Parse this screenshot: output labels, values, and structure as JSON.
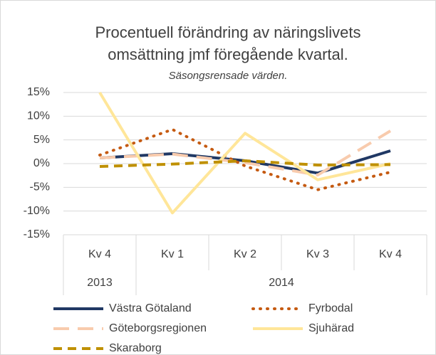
{
  "chart_data": {
    "type": "line",
    "title": [
      "Procentuell förändring av näringslivets",
      "omsättning jmf föregående kvartal."
    ],
    "subtitle": "Säsongsrensade värden.",
    "categories": [
      "Kv 4",
      "Kv 1",
      "Kv 2",
      "Kv 3",
      "Kv 4"
    ],
    "category_groups": [
      {
        "label": "2013",
        "span": 1
      },
      {
        "label": "2014",
        "span": 4
      }
    ],
    "ylim": [
      -15,
      15
    ],
    "yticks": [
      {
        "value": 15,
        "label": "15%"
      },
      {
        "value": 10,
        "label": "10%"
      },
      {
        "value": 5,
        "label": "5%"
      },
      {
        "value": 0,
        "label": "0%"
      },
      {
        "value": -5,
        "label": "-5%"
      },
      {
        "value": -10,
        "label": "-10%"
      },
      {
        "value": -15,
        "label": "-15%"
      }
    ],
    "grid": true,
    "legend": "bottom",
    "series": [
      {
        "name": "Västra Götaland",
        "color": "#203864",
        "style": "solid",
        "values": [
          1.2,
          2.1,
          0.6,
          -2.0,
          2.7
        ]
      },
      {
        "name": "Fyrbodal",
        "color": "#c55a11",
        "style": "dot",
        "values": [
          1.8,
          7.2,
          -0.5,
          -5.5,
          -1.8
        ]
      },
      {
        "name": "Göteborgsregionen",
        "color": "#f8cbad",
        "style": "long-dash",
        "values": [
          1.2,
          2.0,
          0.2,
          -2.4,
          6.9
        ]
      },
      {
        "name": "Sjuhärad",
        "color": "#ffe699",
        "style": "solid",
        "values": [
          15,
          -10.4,
          6.4,
          -3.4,
          0.0
        ]
      },
      {
        "name": "Skaraborg",
        "color": "#bf9000",
        "style": "dash",
        "values": [
          -0.6,
          -0.1,
          0.6,
          -0.3,
          -0.2
        ]
      }
    ]
  }
}
